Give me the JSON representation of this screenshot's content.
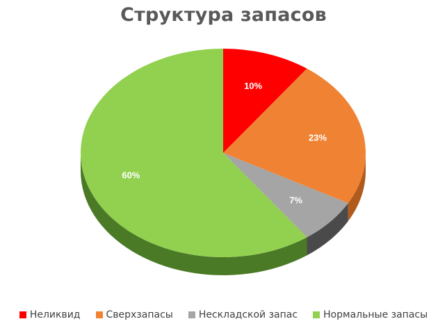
{
  "chart_data": {
    "type": "pie",
    "title": "Структура запасов",
    "slices": [
      {
        "name": "Неликвид",
        "value": 10,
        "label": "10%",
        "color": "#ff0000",
        "side_color": "#b30000"
      },
      {
        "name": "Сверхзапасы",
        "value": 23,
        "label": "23%",
        "color": "#f08233",
        "side_color": "#b05a1c"
      },
      {
        "name": "Нескладской запас",
        "value": 7,
        "label": "7%",
        "color": "#a5a5a5",
        "side_color": "#4a4a4a"
      },
      {
        "name": "Нормальные запасы",
        "value": 60,
        "label": "60%",
        "color": "#92d050",
        "side_color": "#4a7a26"
      }
    ],
    "legend_position": "bottom",
    "start_angle_deg": 0,
    "direction": "clockwise",
    "style": "3d-pie"
  }
}
